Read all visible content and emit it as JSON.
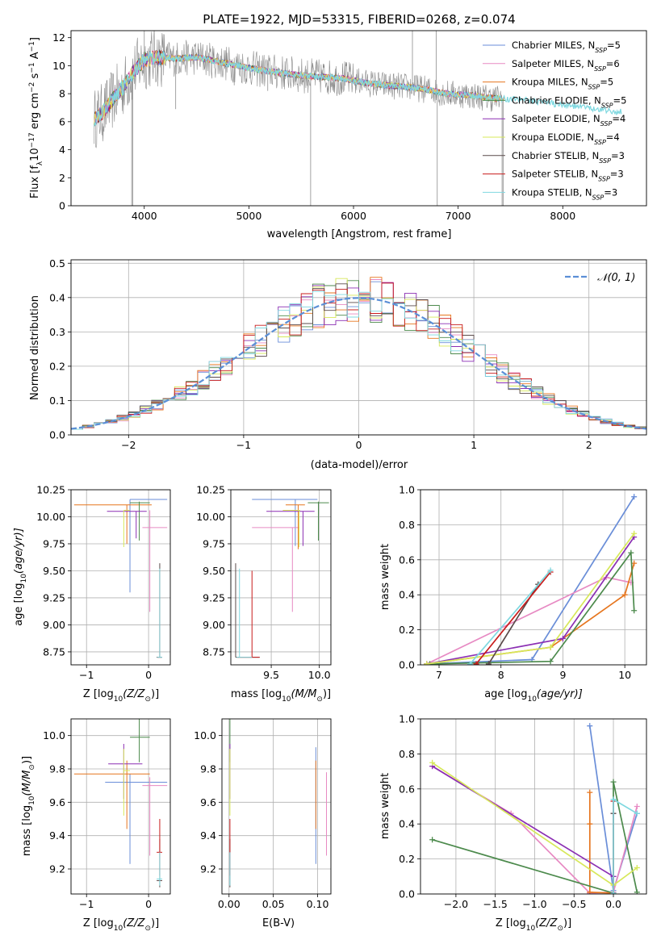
{
  "figure_title": "PLATE=1922, MJD=53315, FIBERID=0268, z=0.074",
  "models": [
    {
      "name": "Chabrier MILES",
      "n": "5",
      "color": "#6a8ed8"
    },
    {
      "name": "Salpeter MILES",
      "n": "6",
      "color": "#e78ac3"
    },
    {
      "name": "Kroupa MILES",
      "n": "5",
      "color": "#e6761f"
    },
    {
      "name": "Chabrier ELODIE",
      "n": "5",
      "color": "#4c8a4c"
    },
    {
      "name": "Salpeter ELODIE",
      "n": "4",
      "color": "#8b2fb3"
    },
    {
      "name": "Kroupa ELODIE",
      "n": "4",
      "color": "#d7e85a"
    },
    {
      "name": "Chabrier STELIB",
      "n": "3",
      "color": "#5a4a4a"
    },
    {
      "name": "Salpeter STELIB",
      "n": "3",
      "color": "#c81c1c"
    },
    {
      "name": "Kroupa STELIB",
      "n": "3",
      "color": "#7fd8e0"
    }
  ],
  "legend_suffix": {
    "prefix": "N",
    "sub": "SSP"
  },
  "hist_legend": "𝒩(0, 1)",
  "chart_data": [
    {
      "id": "spectrum",
      "type": "line",
      "xlabel": "wavelength [Angstrom, rest frame]",
      "ylabel_parts": [
        "Flux [f",
        "λ",
        "10",
        "−17",
        " erg cm",
        "−2",
        " s",
        "−1",
        " A",
        "−1",
        "]"
      ],
      "xlim": [
        3300,
        8800
      ],
      "ylim": [
        0,
        12.5
      ],
      "xticks": [
        4000,
        5000,
        6000,
        7000,
        8000
      ],
      "yticks": [
        0,
        2,
        4,
        6,
        8,
        10,
        12
      ],
      "grid": false,
      "legend": "right",
      "continuum": [
        [
          3520,
          6.2
        ],
        [
          3600,
          6.6
        ],
        [
          3700,
          7.6
        ],
        [
          3800,
          8.5
        ],
        [
          3900,
          9.6
        ],
        [
          4000,
          10.4
        ],
        [
          4100,
          10.6
        ],
        [
          4300,
          10.5
        ],
        [
          4500,
          10.6
        ],
        [
          4700,
          10.3
        ],
        [
          4900,
          10.0
        ],
        [
          5100,
          9.7
        ],
        [
          5300,
          9.5
        ],
        [
          5500,
          9.3
        ],
        [
          5700,
          9.2
        ],
        [
          5900,
          9.1
        ],
        [
          6100,
          8.8
        ],
        [
          6300,
          8.6
        ],
        [
          6500,
          8.5
        ],
        [
          6700,
          8.3
        ],
        [
          6900,
          8.0
        ],
        [
          7100,
          7.9
        ],
        [
          7300,
          7.7
        ],
        [
          7500,
          7.6
        ],
        [
          7700,
          7.5
        ],
        [
          7900,
          7.3
        ],
        [
          8100,
          7.1
        ],
        [
          8300,
          6.9
        ],
        [
          8500,
          6.7
        ]
      ],
      "spikes": [
        [
          3880,
          0
        ],
        [
          3890,
          0
        ],
        [
          4000,
          12.5
        ],
        [
          4300,
          6.9
        ],
        [
          4860,
          8.6
        ],
        [
          5180,
          8.2
        ],
        [
          5590,
          0
        ],
        [
          5892,
          8.3
        ],
        [
          6563,
          12.5
        ],
        [
          6583,
          9.3
        ],
        [
          6790,
          12.5
        ],
        [
          6800,
          0
        ],
        [
          7420,
          0
        ],
        [
          7430,
          0
        ]
      ]
    },
    {
      "id": "residuals",
      "type": "line",
      "xlabel": "(data-model)/error",
      "ylabel": "Normed distribution",
      "xlim": [
        -2.5,
        2.5
      ],
      "ylim": [
        0,
        0.51
      ],
      "xticks": [
        -2,
        -1,
        0,
        1,
        2
      ],
      "yticks": [
        0,
        0.1,
        0.2,
        0.3,
        0.4,
        0.5
      ],
      "grid": true,
      "legend": "top-right",
      "bin_width": 0.1,
      "note": "normal-like step histograms, one per model, centred near 0"
    },
    {
      "id": "age_vs_Z",
      "type": "scatter",
      "xlabel_parts": [
        "Z [log",
        "10",
        "(Z/Z",
        "⊙",
        ")]"
      ],
      "ylabel_parts": [
        "age  [log",
        "10",
        "(age/yr)]"
      ],
      "xlim": [
        -1.25,
        0.35
      ],
      "ylim": [
        8.63,
        10.25
      ],
      "xticks": [
        -1,
        0
      ],
      "yticks": [
        8.75,
        9.0,
        9.25,
        9.5,
        9.75,
        10.0,
        10.25
      ],
      "grid": true,
      "points": [
        {
          "m": 0,
          "x": -0.3,
          "y": 10.16,
          "x0": -0.3,
          "x1": 0.3,
          "y0": 9.3,
          "y1": 10.16
        },
        {
          "m": 1,
          "x": 0.02,
          "y": 9.9,
          "x0": -0.1,
          "x1": 0.3,
          "y0": 9.12,
          "y1": 10.06
        },
        {
          "m": 2,
          "x": -0.35,
          "y": 10.11,
          "x0": -1.2,
          "x1": 0.05,
          "y0": 9.75,
          "y1": 10.11
        },
        {
          "m": 3,
          "x": -0.15,
          "y": 10.13,
          "x0": -0.3,
          "x1": 0.02,
          "y0": 9.78,
          "y1": 10.14
        },
        {
          "m": 4,
          "x": -0.2,
          "y": 10.05,
          "x0": -0.67,
          "x1": -0.03,
          "y0": 9.8,
          "y1": 10.05
        },
        {
          "m": 5,
          "x": -0.4,
          "y": 10.06,
          "x0": -0.4,
          "x1": -0.3,
          "y0": 9.72,
          "y1": 10.06
        },
        {
          "m": 6,
          "x": 0.18,
          "y": 8.7,
          "x0": 0.13,
          "x1": 0.22,
          "y0": 8.7,
          "y1": 9.57
        },
        {
          "m": 7,
          "x": 0.18,
          "y": 8.7,
          "x0": 0.15,
          "x1": 0.21,
          "y0": 8.7,
          "y1": 9.5
        },
        {
          "m": 8,
          "x": 0.18,
          "y": 8.7,
          "x0": 0.14,
          "x1": 0.22,
          "y0": 8.7,
          "y1": 9.52
        }
      ]
    },
    {
      "id": "age_vs_mass",
      "type": "scatter",
      "xlabel_parts": [
        "mass [log",
        "10",
        "(M/M",
        "⊙",
        ")]"
      ],
      "xlim": [
        9.08,
        10.12
      ],
      "ylim": [
        8.63,
        10.25
      ],
      "xticks": [
        9.5,
        10.0
      ],
      "yticks": [
        8.75,
        9.0,
        9.25,
        9.5,
        9.75,
        10.0,
        10.25
      ],
      "grid": true,
      "points": [
        {
          "m": 0,
          "x": 9.75,
          "y": 10.16,
          "x0": 9.3,
          "x1": 9.98,
          "y0": 9.73,
          "y1": 10.16
        },
        {
          "m": 1,
          "x": 9.72,
          "y": 9.9,
          "x0": 9.3,
          "x1": 9.79,
          "y0": 9.12,
          "y1": 9.9
        },
        {
          "m": 2,
          "x": 9.78,
          "y": 10.11,
          "x0": 9.65,
          "x1": 9.85,
          "y0": 9.7,
          "y1": 10.11
        },
        {
          "m": 3,
          "x": 9.99,
          "y": 10.13,
          "x0": 9.88,
          "x1": 10.1,
          "y0": 9.78,
          "y1": 10.14
        },
        {
          "m": 4,
          "x": 9.83,
          "y": 10.05,
          "x0": 9.45,
          "x1": 9.95,
          "y0": 9.73,
          "y1": 10.05
        },
        {
          "m": 5,
          "x": 9.79,
          "y": 10.06,
          "x0": 9.62,
          "x1": 9.8,
          "y0": 9.72,
          "y1": 10.06
        },
        {
          "m": 6,
          "x": 9.13,
          "y": 8.7,
          "x0": 9.13,
          "x1": 9.38,
          "y0": 8.7,
          "y1": 9.57
        },
        {
          "m": 7,
          "x": 9.3,
          "y": 8.7,
          "x0": 9.15,
          "x1": 9.38,
          "y0": 8.7,
          "y1": 9.5
        },
        {
          "m": 8,
          "x": 9.17,
          "y": 8.7,
          "x0": 9.14,
          "x1": 9.3,
          "y0": 8.7,
          "y1": 9.52
        }
      ]
    },
    {
      "id": "weight_vs_age",
      "type": "line",
      "xlabel_parts": [
        "age  [log",
        "10",
        "(age/yr)]"
      ],
      "ylabel": "mass weight",
      "xlim": [
        6.7,
        10.35
      ],
      "ylim": [
        0,
        1
      ],
      "xticks": [
        7,
        8,
        9,
        10
      ],
      "yticks": [
        0,
        0.2,
        0.4,
        0.6,
        0.8,
        1.0
      ],
      "grid": true,
      "series": [
        {
          "m": 0,
          "points": [
            [
              6.8,
              0.005
            ],
            [
              8.5,
              0.03
            ],
            [
              10.15,
              0.96
            ]
          ]
        },
        {
          "m": 1,
          "points": [
            [
              6.8,
              0.005
            ],
            [
              9.7,
              0.5
            ],
            [
              10.1,
              0.47
            ]
          ]
        },
        {
          "m": 2,
          "points": [
            [
              6.8,
              0.005
            ],
            [
              8.8,
              0.1
            ],
            [
              10.0,
              0.4
            ],
            [
              10.15,
              0.58
            ]
          ]
        },
        {
          "m": 3,
          "points": [
            [
              6.85,
              0.005
            ],
            [
              8.8,
              0.02
            ],
            [
              10.1,
              0.64
            ],
            [
              10.15,
              0.31
            ]
          ]
        },
        {
          "m": 4,
          "points": [
            [
              6.8,
              0.005
            ],
            [
              9.0,
              0.15
            ],
            [
              10.15,
              0.73
            ]
          ]
        },
        {
          "m": 5,
          "points": [
            [
              6.8,
              0.005
            ],
            [
              8.8,
              0.1
            ],
            [
              10.15,
              0.75
            ]
          ]
        },
        {
          "m": 6,
          "points": [
            [
              7.8,
              0.005
            ],
            [
              8.6,
              0.46
            ]
          ]
        },
        {
          "m": 7,
          "points": [
            [
              7.6,
              0.005
            ],
            [
              8.8,
              0.53
            ]
          ]
        },
        {
          "m": 8,
          "points": [
            [
              7.5,
              0.005
            ],
            [
              8.8,
              0.54
            ]
          ]
        }
      ]
    },
    {
      "id": "mass_vs_Z",
      "type": "scatter",
      "xlabel_parts": [
        "Z [log",
        "10",
        "(Z/Z",
        "⊙",
        ")]"
      ],
      "ylabel_parts": [
        "mass [log",
        "10",
        "(M/M",
        "⊙",
        ")]"
      ],
      "xlim": [
        -1.25,
        0.35
      ],
      "ylim": [
        9.05,
        10.1
      ],
      "xticks": [
        -1,
        0
      ],
      "yticks": [
        9.2,
        9.4,
        9.6,
        9.8,
        10.0
      ],
      "grid": true,
      "points": [
        {
          "m": 0,
          "x": -0.3,
          "y": 9.72,
          "x0": -0.7,
          "x1": 0.3,
          "y0": 9.23,
          "y1": 9.77
        },
        {
          "m": 1,
          "x": 0.02,
          "y": 9.7,
          "x0": -0.1,
          "x1": 0.3,
          "y0": 9.28,
          "y1": 9.75
        },
        {
          "m": 2,
          "x": -0.35,
          "y": 9.77,
          "x0": -1.2,
          "x1": 0.02,
          "y0": 9.44,
          "y1": 9.85
        },
        {
          "m": 3,
          "x": -0.15,
          "y": 9.99,
          "x0": -0.3,
          "x1": 0.02,
          "y0": 9.84,
          "y1": 10.1
        },
        {
          "m": 4,
          "x": -0.4,
          "y": 9.83,
          "x0": -0.65,
          "x1": -0.1,
          "y0": 9.62,
          "y1": 9.95
        },
        {
          "m": 5,
          "x": -0.4,
          "y": 9.79,
          "x0": -0.4,
          "x1": -0.3,
          "y0": 9.52,
          "y1": 9.92
        },
        {
          "m": 6,
          "x": 0.18,
          "y": 9.13,
          "x0": 0.13,
          "x1": 0.22,
          "y0": 9.09,
          "y1": 9.38
        },
        {
          "m": 7,
          "x": 0.18,
          "y": 9.3,
          "x0": 0.13,
          "x1": 0.22,
          "y0": 9.16,
          "y1": 9.5
        },
        {
          "m": 8,
          "x": 0.18,
          "y": 9.14,
          "x0": 0.13,
          "x1": 0.22,
          "y0": 9.1,
          "y1": 9.3
        }
      ]
    },
    {
      "id": "mass_vs_ebv",
      "type": "scatter",
      "xlabel": "E(B-V)",
      "xlim": [
        -0.008,
        0.115
      ],
      "ylim": [
        9.05,
        10.1
      ],
      "xticks": [
        0.0,
        0.05,
        0.1
      ],
      "yticks": [
        9.2,
        9.4,
        9.6,
        9.8,
        10.0
      ],
      "grid": true,
      "points": [
        {
          "m": 0,
          "x": 0.098,
          "y": 9.72,
          "y0": 9.23,
          "y1": 9.93
        },
        {
          "m": 1,
          "x": 0.11,
          "y": 9.7,
          "y0": 9.28,
          "y1": 9.78
        },
        {
          "m": 2,
          "x": 0.098,
          "y": 9.77,
          "y0": 9.44,
          "y1": 9.85
        },
        {
          "m": 3,
          "x": 0.001,
          "y": 9.99,
          "y0": 9.84,
          "y1": 10.1
        },
        {
          "m": 4,
          "x": 0.001,
          "y": 9.83,
          "y0": 9.62,
          "y1": 9.95
        },
        {
          "m": 5,
          "x": 0.001,
          "y": 9.79,
          "y0": 9.52,
          "y1": 9.92
        },
        {
          "m": 6,
          "x": 0.001,
          "y": 9.13,
          "y0": 9.09,
          "y1": 9.38
        },
        {
          "m": 7,
          "x": 0.001,
          "y": 9.3,
          "y0": 9.16,
          "y1": 9.5
        },
        {
          "m": 8,
          "x": 0.001,
          "y": 9.14,
          "y0": 9.1,
          "y1": 9.3
        }
      ]
    },
    {
      "id": "weight_vs_Z",
      "type": "line",
      "xlabel_parts": [
        "Z [log",
        "10",
        "(Z/Z",
        "⊙",
        ")]"
      ],
      "ylabel": "mass weight",
      "xlim": [
        -2.45,
        0.42
      ],
      "ylim": [
        0,
        1
      ],
      "xticks": [
        -2.0,
        -1.5,
        -1.0,
        -0.5,
        0.0
      ],
      "yticks": [
        0,
        0.2,
        0.4,
        0.6,
        0.8,
        1.0
      ],
      "grid": true,
      "series": [
        {
          "m": 0,
          "points": [
            [
              -0.3,
              0.96
            ],
            [
              0.0,
              0.02
            ],
            [
              0.3,
              0.46
            ]
          ]
        },
        {
          "m": 1,
          "points": [
            [
              -2.3,
              0.73
            ],
            [
              -1.3,
              0.46
            ],
            [
              -0.3,
              0.005
            ],
            [
              0.0,
              0.01
            ],
            [
              0.3,
              0.5
            ]
          ]
        },
        {
          "m": 2,
          "points": [
            [
              -0.3,
              0.58
            ],
            [
              -0.3,
              0.4
            ],
            [
              -0.3,
              0.01
            ],
            [
              0.0,
              0.005
            ]
          ]
        },
        {
          "m": 3,
          "points": [
            [
              -2.3,
              0.31
            ],
            [
              0.0,
              0.005
            ],
            [
              0.0,
              0.64
            ],
            [
              0.3,
              0.01
            ]
          ]
        },
        {
          "m": 4,
          "points": [
            [
              -2.3,
              0.73
            ],
            [
              0.0,
              0.1
            ]
          ]
        },
        {
          "m": 5,
          "points": [
            [
              -2.3,
              0.75
            ],
            [
              0.0,
              0.05
            ],
            [
              0.3,
              0.15
            ]
          ]
        },
        {
          "m": 6,
          "points": [
            [
              0.0,
              0.005
            ],
            [
              0.0,
              0.46
            ]
          ]
        },
        {
          "m": 7,
          "points": [
            [
              0.0,
              0.005
            ],
            [
              0.0,
              0.53
            ]
          ]
        },
        {
          "m": 8,
          "points": [
            [
              0.0,
              0.005
            ],
            [
              0.0,
              0.54
            ],
            [
              0.3,
              0.46
            ]
          ]
        }
      ]
    }
  ]
}
